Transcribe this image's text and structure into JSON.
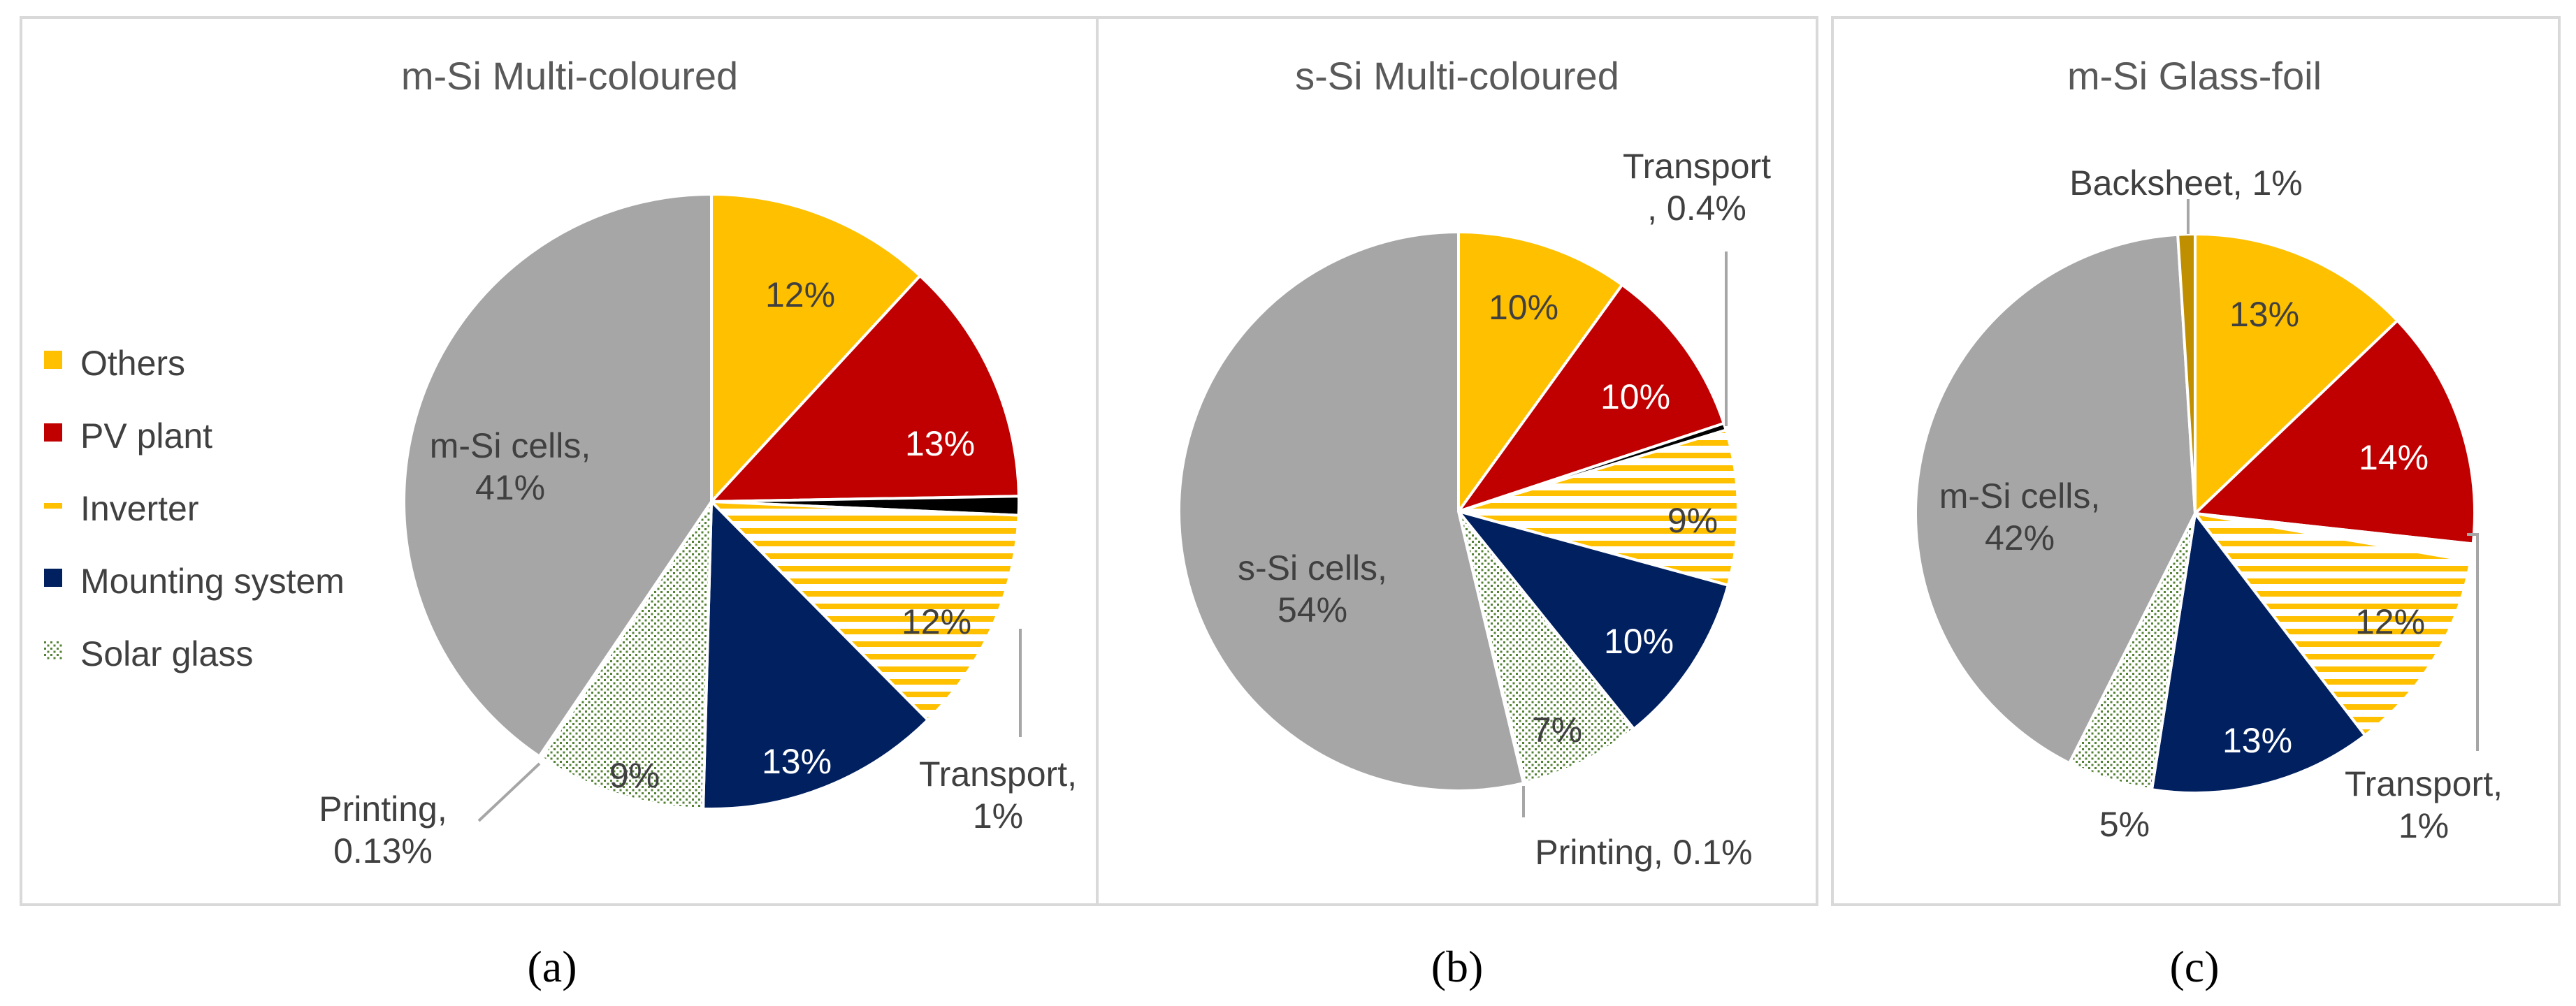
{
  "figure": {
    "captions": [
      "(a)",
      "(b)",
      "(c)"
    ]
  },
  "legend": {
    "items": [
      {
        "label": "Others",
        "color": "#FFC000",
        "pattern": "solid"
      },
      {
        "label": "PV plant",
        "color": "#C00000",
        "pattern": "solid"
      },
      {
        "label": "Inverter",
        "color": "#FFC000",
        "pattern": "hstripe"
      },
      {
        "label": "Mounting system",
        "color": "#002060",
        "pattern": "solid"
      },
      {
        "label": "Solar glass",
        "color": "#548235",
        "pattern": "dots"
      }
    ]
  },
  "chart_data": [
    {
      "type": "pie",
      "title": "m-Si Multi-coloured",
      "caption": "(a)",
      "start_angle_deg": 0,
      "direction": "clockwise",
      "slices": [
        {
          "label": "Others",
          "value": 12,
          "display": "12%",
          "color": "#FFC000",
          "pattern": "solid"
        },
        {
          "label": "PV plant",
          "value": 13,
          "display": "13%",
          "color": "#C00000",
          "pattern": "solid"
        },
        {
          "label": "Transport",
          "value": 1,
          "display": "Transport,\n1%",
          "color": "#000000",
          "pattern": "solid"
        },
        {
          "label": "Inverter",
          "value": 12,
          "display": "12%",
          "color": "#FFC000",
          "pattern": "hstripe"
        },
        {
          "label": "Mounting system",
          "value": 13,
          "display": "13%",
          "color": "#002060",
          "pattern": "solid"
        },
        {
          "label": "Solar glass",
          "value": 9,
          "display": "9%",
          "color": "#548235",
          "pattern": "dots"
        },
        {
          "label": "Printing",
          "value": 0.13,
          "display": "Printing,\n0.13%",
          "color": "#7F7F7F",
          "pattern": "solid"
        },
        {
          "label": "m-Si cells",
          "value": 41,
          "display": "m-Si cells,\n41%",
          "color": "#A6A6A6",
          "pattern": "solid"
        }
      ]
    },
    {
      "type": "pie",
      "title": "s-Si Multi-coloured",
      "caption": "(b)",
      "start_angle_deg": 0,
      "direction": "clockwise",
      "slices": [
        {
          "label": "Others",
          "value": 10,
          "display": "10%",
          "color": "#FFC000",
          "pattern": "solid"
        },
        {
          "label": "PV plant",
          "value": 10,
          "display": "10%",
          "color": "#C00000",
          "pattern": "solid"
        },
        {
          "label": "Transport",
          "value": 0.4,
          "display": "Transport\n, 0.4%",
          "color": "#000000",
          "pattern": "solid"
        },
        {
          "label": "Inverter",
          "value": 9,
          "display": "9%",
          "color": "#FFC000",
          "pattern": "hstripe"
        },
        {
          "label": "Mounting system",
          "value": 10,
          "display": "10%",
          "color": "#002060",
          "pattern": "solid"
        },
        {
          "label": "Solar glass",
          "value": 7,
          "display": "7%",
          "color": "#548235",
          "pattern": "dots"
        },
        {
          "label": "Printing",
          "value": 0.1,
          "display": "Printing, 0.1%",
          "color": "#7F7F7F",
          "pattern": "solid"
        },
        {
          "label": "s-Si cells",
          "value": 54,
          "display": "s-Si cells,\n54%",
          "color": "#A6A6A6",
          "pattern": "solid"
        }
      ]
    },
    {
      "type": "pie",
      "title": "m-Si Glass-foil",
      "caption": "(c)",
      "start_angle_deg": 0,
      "direction": "clockwise",
      "slices": [
        {
          "label": "Others",
          "value": 13,
          "display": "13%",
          "color": "#FFC000",
          "pattern": "solid"
        },
        {
          "label": "PV plant",
          "value": 14,
          "display": "14%",
          "color": "#C00000",
          "pattern": "solid"
        },
        {
          "label": "Transport",
          "value": 1,
          "display": "Transport,\n1%",
          "color": "#FFFFFF",
          "pattern": "solid"
        },
        {
          "label": "Inverter",
          "value": 12,
          "display": "12%",
          "color": "#FFC000",
          "pattern": "hstripe"
        },
        {
          "label": "Mounting system",
          "value": 13,
          "display": "13%",
          "color": "#002060",
          "pattern": "solid"
        },
        {
          "label": "Solar glass",
          "value": 5,
          "display": "5%",
          "color": "#548235",
          "pattern": "dots"
        },
        {
          "label": "m-Si cells",
          "value": 42,
          "display": "m-Si cells,\n42%",
          "color": "#A6A6A6",
          "pattern": "solid"
        },
        {
          "label": "Backsheet",
          "value": 1,
          "display": "Backsheet, 1%",
          "color": "#BF8F00",
          "pattern": "solid"
        }
      ]
    }
  ]
}
